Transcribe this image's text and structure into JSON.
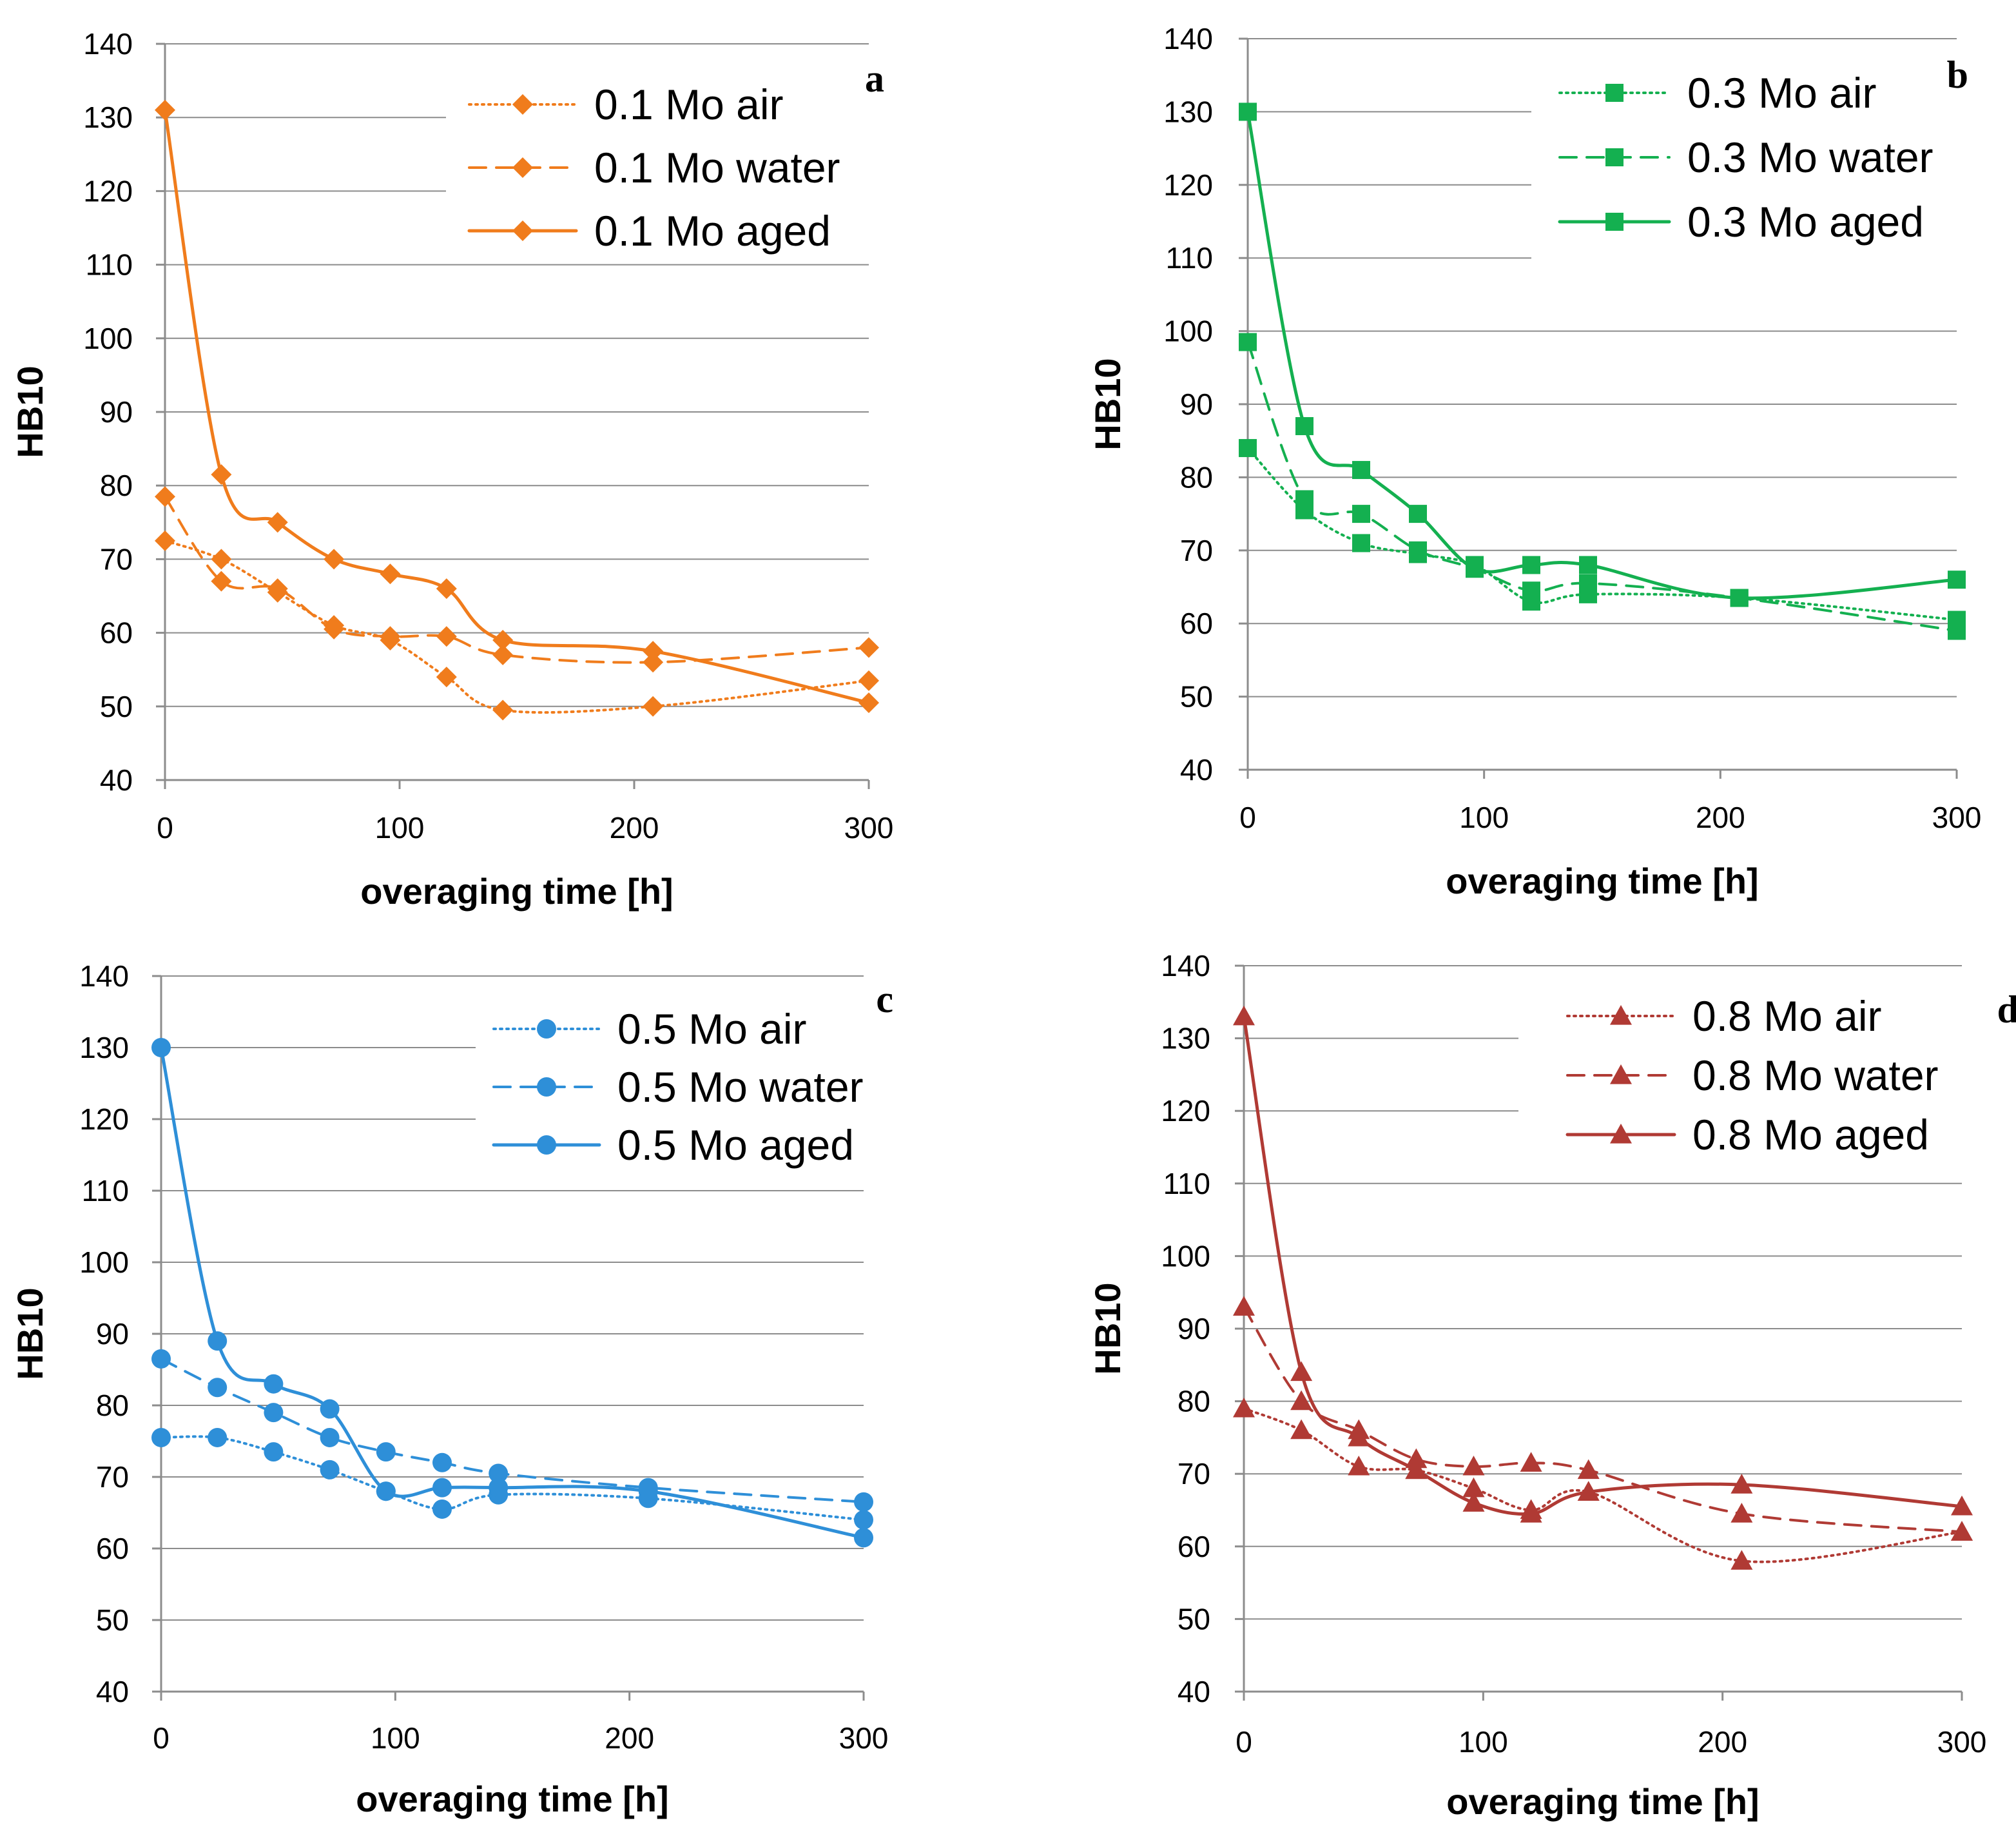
{
  "chart_data": [
    {
      "type": "line",
      "panel": "a",
      "xlabel": "overaging time [h]",
      "ylabel": "HB10",
      "xlim": [
        0,
        300
      ],
      "ylim": [
        40,
        140
      ],
      "xticks": [
        "0",
        "100",
        "200",
        "300"
      ],
      "yticks": [
        "40",
        "50",
        "60",
        "70",
        "80",
        "90",
        "100",
        "110",
        "120",
        "130",
        "140"
      ],
      "grid": true,
      "legend_position": "top-right",
      "color": "#F07C1C",
      "marker": "diamond",
      "series": [
        {
          "name": "0.1 Mo air",
          "style": "dotted",
          "x": [
            0,
            24,
            48,
            72,
            96,
            120,
            144,
            208,
            300
          ],
          "y": [
            72.5,
            70,
            65.5,
            61,
            59,
            54,
            49.5,
            50,
            53.5
          ]
        },
        {
          "name": "0.1 Mo water",
          "style": "dashed",
          "x": [
            0,
            24,
            48,
            72,
            96,
            120,
            144,
            208,
            300
          ],
          "y": [
            78.5,
            67,
            66,
            60.5,
            59.5,
            59.5,
            57,
            56,
            58
          ]
        },
        {
          "name": "0.1 Mo aged",
          "style": "solid",
          "x": [
            0,
            24,
            48,
            72,
            96,
            120,
            144,
            208,
            300
          ],
          "y": [
            131,
            81.5,
            75,
            70,
            68,
            66,
            59,
            57.5,
            50.5
          ]
        }
      ]
    },
    {
      "type": "line",
      "panel": "b",
      "xlabel": "overaging time [h]",
      "ylabel": "HB10",
      "xlim": [
        0,
        300
      ],
      "ylim": [
        40,
        140
      ],
      "xticks": [
        "0",
        "100",
        "200",
        "300"
      ],
      "yticks": [
        "40",
        "50",
        "60",
        "70",
        "80",
        "90",
        "100",
        "110",
        "120",
        "130",
        "140"
      ],
      "grid": true,
      "legend_position": "top-right",
      "color": "#14B050",
      "marker": "square",
      "series": [
        {
          "name": "0.3 Mo air",
          "style": "dotted",
          "x": [
            0,
            24,
            48,
            72,
            96,
            120,
            144,
            208,
            300
          ],
          "y": [
            84,
            75.5,
            71,
            69.5,
            68,
            63,
            64,
            63.5,
            60.5
          ]
        },
        {
          "name": "0.3 Mo water",
          "style": "dashed",
          "x": [
            0,
            24,
            48,
            72,
            96,
            120,
            144,
            208,
            300
          ],
          "y": [
            98.5,
            77,
            75,
            70,
            67.5,
            64.5,
            65.5,
            63.5,
            59
          ]
        },
        {
          "name": "0.3 Mo aged",
          "style": "solid",
          "x": [
            0,
            24,
            48,
            72,
            96,
            120,
            144,
            208,
            300
          ],
          "y": [
            130,
            87,
            81,
            75,
            67.5,
            68,
            68,
            63.5,
            66
          ]
        }
      ]
    },
    {
      "type": "line",
      "panel": "c",
      "xlabel": "overaging time [h]",
      "ylabel": "HB10",
      "xlim": [
        0,
        300
      ],
      "ylim": [
        40,
        140
      ],
      "xticks": [
        "0",
        "100",
        "200",
        "300"
      ],
      "yticks": [
        "40",
        "50",
        "60",
        "70",
        "80",
        "90",
        "100",
        "110",
        "120",
        "130",
        "140"
      ],
      "grid": true,
      "legend_position": "top-right",
      "color": "#2E8FD8",
      "marker": "circle",
      "series": [
        {
          "name": "0.5 Mo air",
          "style": "dotted",
          "x": [
            0,
            24,
            48,
            72,
            96,
            120,
            144,
            208,
            300
          ],
          "y": [
            75.5,
            75.5,
            73.5,
            71,
            68,
            65.5,
            67.5,
            67,
            64
          ]
        },
        {
          "name": "0.5 Mo water",
          "style": "dashed",
          "x": [
            0,
            24,
            48,
            72,
            96,
            120,
            144,
            208,
            300
          ],
          "y": [
            86.5,
            82.5,
            79,
            75.5,
            73.5,
            72,
            70.5,
            68.5,
            66.5
          ]
        },
        {
          "name": "0.5 Mo aged",
          "style": "solid",
          "x": [
            0,
            24,
            48,
            72,
            96,
            120,
            144,
            208,
            300
          ],
          "y": [
            130,
            89,
            83,
            79.5,
            68,
            68.5,
            68.5,
            68,
            61.5
          ]
        }
      ]
    },
    {
      "type": "line",
      "panel": "d",
      "xlabel": "overaging time [h]",
      "ylabel": "HB10",
      "xlim": [
        0,
        300
      ],
      "ylim": [
        40,
        140
      ],
      "xticks": [
        "0",
        "100",
        "200",
        "300"
      ],
      "yticks": [
        "40",
        "50",
        "60",
        "70",
        "80",
        "90",
        "100",
        "110",
        "120",
        "130",
        "140"
      ],
      "grid": true,
      "legend_position": "top-right",
      "color": "#B03A34",
      "marker": "triangle",
      "series": [
        {
          "name": "0.8 Mo air",
          "style": "dotted",
          "x": [
            0,
            24,
            48,
            72,
            96,
            120,
            144,
            208,
            300
          ],
          "y": [
            79,
            76,
            71,
            70.5,
            68,
            65,
            67.5,
            58,
            62
          ]
        },
        {
          "name": "0.8 Mo water",
          "style": "dashed",
          "x": [
            0,
            24,
            48,
            72,
            96,
            120,
            144,
            208,
            300
          ],
          "y": [
            93,
            80,
            76,
            72,
            71,
            71.5,
            70.5,
            64.5,
            62
          ]
        },
        {
          "name": "0.8 Mo aged",
          "style": "solid",
          "x": [
            0,
            24,
            48,
            72,
            96,
            120,
            144,
            208,
            300
          ],
          "y": [
            133,
            84,
            75,
            70.5,
            66,
            64.5,
            67.5,
            68.5,
            65.5
          ]
        }
      ]
    }
  ]
}
